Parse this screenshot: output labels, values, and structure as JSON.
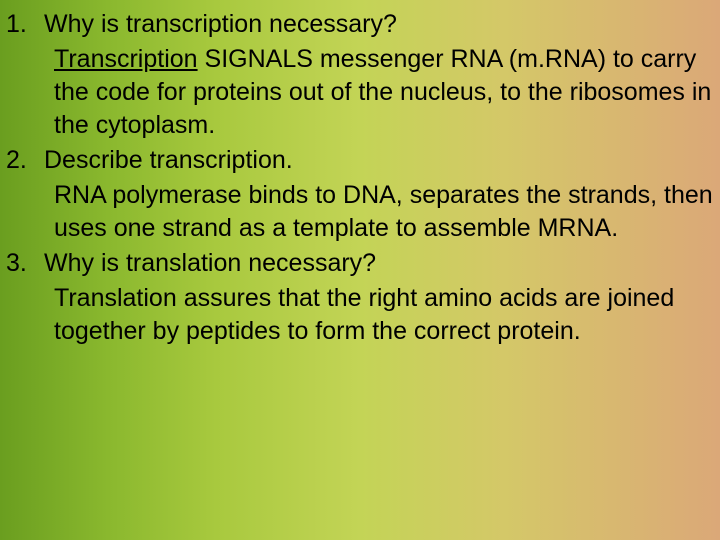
{
  "items": [
    {
      "num": "1.",
      "question": "Why is transcription necessary?",
      "answer_prefix": "Transcription",
      "answer_rest": " SIGNALS messenger RNA (m.RNA) to carry the code for proteins out of the nucleus, to the ribosomes in the cytoplasm."
    },
    {
      "num": "2.",
      "question": "Describe transcription.",
      "answer": "RNA polymerase binds to DNA, separates the strands, then uses one strand as a template to assemble MRNA."
    },
    {
      "num": "3.",
      "question": "Why is translation necessary?",
      "answer": "Translation assures that the right amino acids are joined together by peptides to form the correct protein."
    }
  ],
  "colors": {
    "text": "#000000",
    "bg_gradient_start": "#6a9e1f",
    "bg_gradient_end": "#dba878"
  },
  "typography": {
    "font_family": "Arial",
    "font_size_pt": 19,
    "line_height": 1.32
  }
}
